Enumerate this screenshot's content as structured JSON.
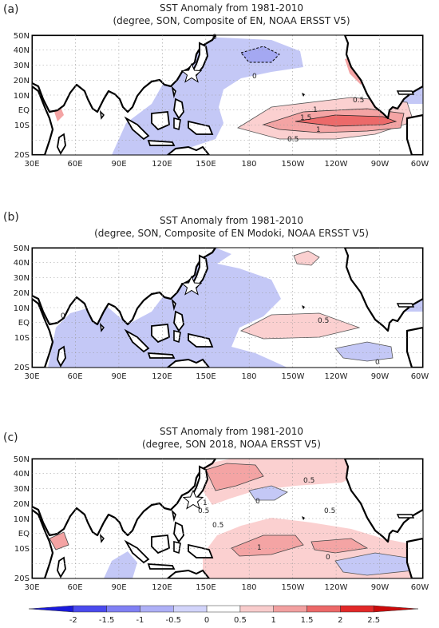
{
  "panels": [
    {
      "letter": "(a)",
      "title": "SST Anomaly from 1981-2010",
      "subtitle": "(degree, SON, Composite of EN, NOAA ERSST V5)",
      "contour_labels": [
        "0",
        "0",
        "0.5",
        "1",
        "1.5",
        "1",
        "0.5"
      ]
    },
    {
      "letter": "(b)",
      "title": "SST Anomaly from 1981-2010",
      "subtitle": "(degree, SON, Composite of EN Modoki, NOAA ERSST V5)",
      "contour_labels": [
        "0",
        "0.5",
        "0"
      ]
    },
    {
      "letter": "(c)",
      "title": "SST Anomaly from 1981-2010",
      "subtitle": "(degree, SON 2018, NOAA ERSST V5)",
      "contour_labels": [
        "0.5",
        "0",
        "0.5",
        "0.5",
        "1",
        "1",
        "0.5",
        "0"
      ]
    }
  ],
  "map_axes": {
    "lat_labels": [
      "50N",
      "40N",
      "30N",
      "20N",
      "10N",
      "EQ",
      "10S",
      "20S"
    ],
    "lon_labels": [
      "30E",
      "60E",
      "90E",
      "120E",
      "150E",
      "180",
      "150W",
      "120W",
      "90W",
      "60W"
    ]
  },
  "marker": {
    "icon": "star-icon"
  },
  "colorbar": {
    "labels": [
      "-2",
      "-1.5",
      "-1",
      "-0.5",
      "0",
      "0.5",
      "1",
      "1.5",
      "2",
      "2.5"
    ],
    "colors": [
      "#1a1adc",
      "#4a4aee",
      "#8080f4",
      "#aeb0f6",
      "#d2d4fa",
      "#ffffff",
      "#f8cccc",
      "#f2a0a0",
      "#ec6868",
      "#e22828",
      "#cc0a0a"
    ]
  },
  "colors": {
    "neg_light": "#c4c8f6",
    "neg_mid": "#a4a8f2",
    "pos_light": "#fbd0d0",
    "pos_mid": "#f4a4a4",
    "pos_dark": "#ec6a6a"
  }
}
